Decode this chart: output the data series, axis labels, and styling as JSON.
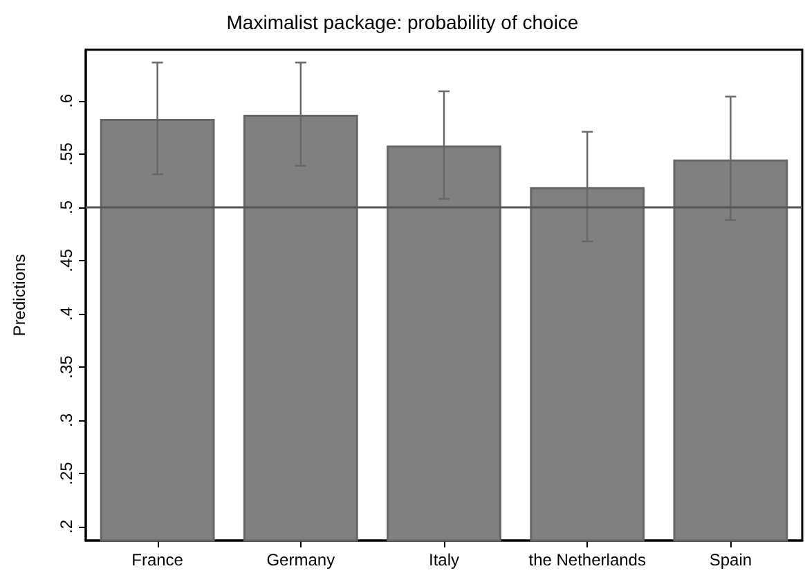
{
  "chart_data": {
    "type": "bar",
    "title": "Maximalist package: probability of choice",
    "ylabel": "Predictions",
    "categories": [
      "France",
      "Germany",
      "Italy",
      "the Netherlands",
      "Spain"
    ],
    "values": [
      0.583,
      0.587,
      0.558,
      0.519,
      0.545
    ],
    "errors": [
      [
        0.531,
        0.636
      ],
      [
        0.539,
        0.636
      ],
      [
        0.508,
        0.609
      ],
      [
        0.468,
        0.571
      ],
      [
        0.488,
        0.604
      ]
    ],
    "color": "#808080",
    "ylim": [
      0.187,
      0.648
    ],
    "yticks": [
      {
        "value": 0.2,
        "label": ".2"
      },
      {
        "value": 0.25,
        "label": ".25"
      },
      {
        "value": 0.3,
        "label": ".3"
      },
      {
        "value": 0.35,
        "label": ".35"
      },
      {
        "value": 0.4,
        "label": ".4"
      },
      {
        "value": 0.45,
        "label": ".45"
      },
      {
        "value": 0.5,
        "label": ".5"
      },
      {
        "value": 0.55,
        "label": ".55"
      },
      {
        "value": 0.6,
        "label": ".6"
      }
    ],
    "ref_lines": [
      {
        "axis": "y",
        "value": 0.5,
        "color": "#555555"
      }
    ],
    "tick_labels": "xy"
  }
}
